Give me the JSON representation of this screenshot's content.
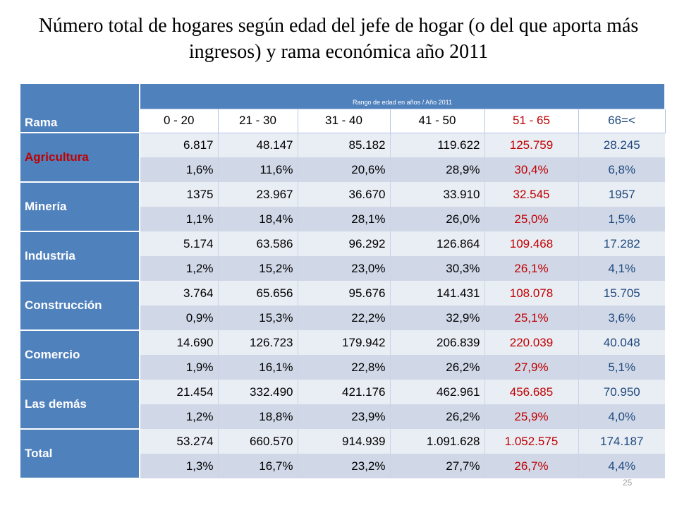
{
  "title": "Número total de hogares según edad del jefe de hogar (o del que aporta más ingresos) y rama económica año 2011",
  "table": {
    "rama_header": "Rama",
    "range_header": "Rango de edad en años / Año 2011",
    "columns": [
      "0 - 20",
      "21 - 30",
      "31 - 40",
      "41 - 50",
      "51 - 65",
      "66=<"
    ],
    "rows": [
      {
        "label": "Agricultura",
        "values": [
          "6.817",
          "48.147",
          "85.182",
          "119.622",
          "125.759",
          "28.245"
        ],
        "pct": [
          "1,6%",
          "11,6%",
          "20,6%",
          "28,9%",
          "30,4%",
          "6,8%"
        ]
      },
      {
        "label": "Minería",
        "values": [
          "1375",
          "23.967",
          "36.670",
          "33.910",
          "32.545",
          "1957"
        ],
        "pct": [
          "1,1%",
          "18,4%",
          "28,1%",
          "26,0%",
          "25,0%",
          "1,5%"
        ]
      },
      {
        "label": "Industria",
        "values": [
          "5.174",
          "63.586",
          "96.292",
          "126.864",
          "109.468",
          "17.282"
        ],
        "pct": [
          "1,2%",
          "15,2%",
          "23,0%",
          "30,3%",
          "26,1%",
          "4,1%"
        ]
      },
      {
        "label": "Construcción",
        "values": [
          "3.764",
          "65.656",
          "95.676",
          "141.431",
          "108.078",
          "15.705"
        ],
        "pct": [
          "0,9%",
          "15,3%",
          "22,2%",
          "32,9%",
          "25,1%",
          "3,6%"
        ]
      },
      {
        "label": "Comercio",
        "values": [
          "14.690",
          "126.723",
          "179.942",
          "206.839",
          "220.039",
          "40.048"
        ],
        "pct": [
          "1,9%",
          "16,1%",
          "22,8%",
          "26,2%",
          "27,9%",
          "5,1%"
        ]
      },
      {
        "label": "Las demás",
        "values": [
          "21.454",
          "332.490",
          "421.176",
          "462.961",
          "456.685",
          "70.950"
        ],
        "pct": [
          "1,2%",
          "18,8%",
          "23,9%",
          "26,2%",
          "25,9%",
          "4,0%"
        ]
      },
      {
        "label": "Total",
        "values": [
          "53.274",
          "660.570",
          "914.939",
          "1.091.628",
          "1.052.575",
          "174.187"
        ],
        "pct": [
          "1,3%",
          "16,7%",
          "23,2%",
          "27,7%",
          "26,7%",
          "4,4%"
        ]
      }
    ]
  },
  "page_number": "25",
  "colors": {
    "header_blue": "#4f81bd",
    "accent_red": "#c00000",
    "accent_navy": "#1f497d"
  }
}
